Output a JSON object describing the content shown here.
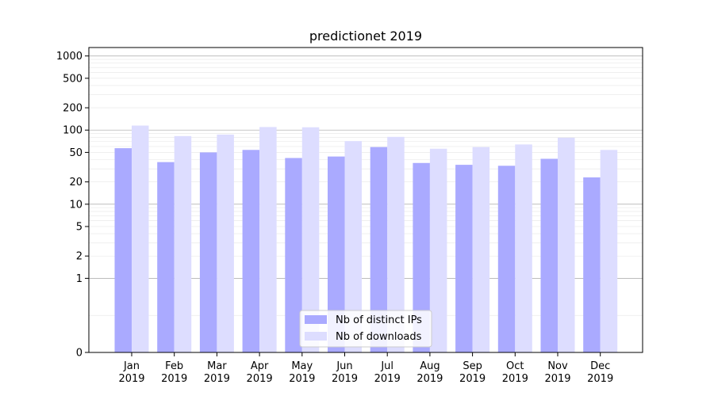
{
  "chart_data": {
    "type": "bar",
    "title": "predictionet 2019",
    "xlabel": "",
    "ylabel": "",
    "scale": "symlog",
    "categories": [
      "Jan\n2019",
      "Feb\n2019",
      "Mar\n2019",
      "Apr\n2019",
      "May\n2019",
      "Jun\n2019",
      "Jul\n2019",
      "Aug\n2019",
      "Sep\n2019",
      "Oct\n2019",
      "Nov\n2019",
      "Dec\n2019"
    ],
    "series": [
      {
        "name": "Nb of distinct IPs",
        "color": "#aaaaff",
        "values": [
          57,
          37,
          50,
          54,
          42,
          44,
          59,
          36,
          34,
          33,
          41,
          23
        ]
      },
      {
        "name": "Nb of downloads",
        "color": "#ddddff",
        "values": [
          115,
          83,
          87,
          110,
          109,
          71,
          81,
          56,
          59,
          64,
          79,
          54
        ]
      }
    ],
    "yticks": [
      0,
      1,
      2,
      5,
      10,
      20,
      50,
      100,
      200,
      500,
      1000
    ],
    "ylim": [
      0,
      1300
    ],
    "grid": true,
    "legend_position": "lower center"
  }
}
